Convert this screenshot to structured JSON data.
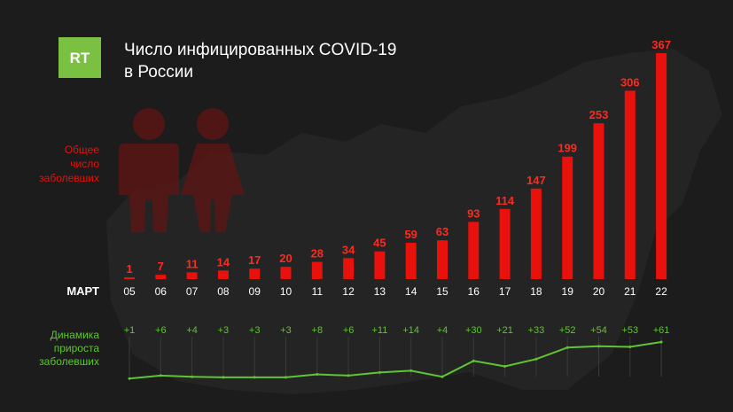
{
  "logo": {
    "text": "RT"
  },
  "title": {
    "line1": "Число инфицированных COVID-19",
    "line2": "в России"
  },
  "labels": {
    "total": [
      "Общее",
      "число",
      "заболевших"
    ],
    "month": "МАРТ",
    "growth": [
      "Динамика",
      "прироста",
      "заболевших"
    ]
  },
  "colors": {
    "background": "#1c1c1c",
    "bar": "#e8110c",
    "bar_label": "#ff2a1e",
    "growth": "#5fc531",
    "logo_bg": "#7ac143",
    "text": "#ffffff",
    "left_label": "#e8110c"
  },
  "chart_data": [
    {
      "type": "bar",
      "categories": [
        "05",
        "06",
        "07",
        "08",
        "09",
        "10",
        "11",
        "12",
        "13",
        "14",
        "15",
        "16",
        "17",
        "18",
        "19",
        "20",
        "21",
        "22"
      ],
      "values": [
        1,
        7,
        11,
        14,
        17,
        20,
        28,
        34,
        45,
        59,
        63,
        93,
        114,
        147,
        199,
        253,
        306,
        367
      ],
      "xlabel": "МАРТ",
      "ylabel": "Общее число заболевших",
      "ylim": [
        0,
        367
      ],
      "grid": false,
      "legend": "none"
    },
    {
      "type": "line",
      "categories": [
        "05",
        "06",
        "07",
        "08",
        "09",
        "10",
        "11",
        "12",
        "13",
        "14",
        "15",
        "16",
        "17",
        "18",
        "19",
        "20",
        "21",
        "22"
      ],
      "values": [
        1,
        6,
        4,
        3,
        3,
        3,
        8,
        6,
        11,
        14,
        4,
        30,
        21,
        33,
        52,
        54,
        53,
        61
      ],
      "value_labels": [
        "+1",
        "+6",
        "+4",
        "+3",
        "+3",
        "+3",
        "+8",
        "+6",
        "+11",
        "+14",
        "+4",
        "+30",
        "+21",
        "+33",
        "+52",
        "+54",
        "+53",
        "+61"
      ],
      "ylabel": "Динамика прироста заболевших",
      "grid": false,
      "legend": "none"
    }
  ]
}
